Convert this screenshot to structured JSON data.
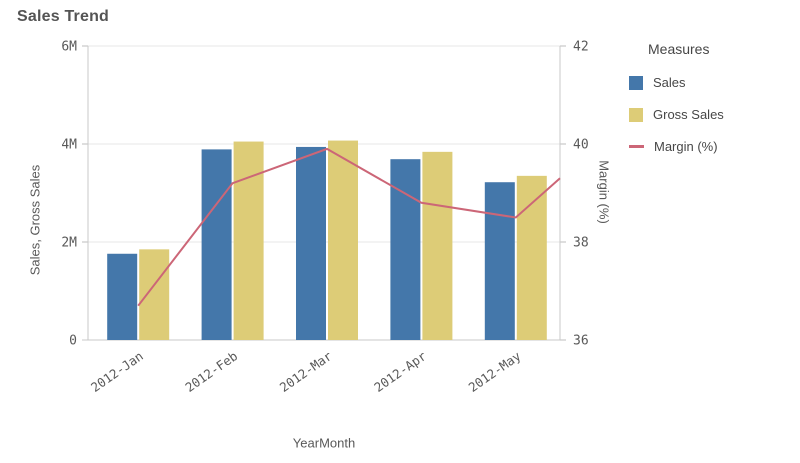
{
  "header": {
    "title": "Sales Trend"
  },
  "legend": {
    "title": "Measures"
  },
  "chart_data": {
    "type": "combo",
    "title": "Sales Trend",
    "grid": true,
    "legend_position": "right",
    "x_axis": {
      "title": "YearMonth",
      "categories": [
        "2012-Jan",
        "2012-Feb",
        "2012-Mar",
        "2012-Apr",
        "2012-May"
      ]
    },
    "left_axis": {
      "title": "Sales, Gross Sales",
      "min": 0,
      "max": 6000000,
      "ticks": [
        {
          "label": "6M",
          "value": 6000000
        },
        {
          "label": "4M",
          "value": 4000000
        },
        {
          "label": "2M",
          "value": 2000000
        },
        {
          "label": "0",
          "value": 0
        }
      ]
    },
    "right_axis": {
      "title": "Margin (%)",
      "min": 36,
      "max": 42,
      "ticks": [
        {
          "label": "42",
          "value": 42
        },
        {
          "label": "40",
          "value": 40
        },
        {
          "label": "38",
          "value": 38
        },
        {
          "label": "36",
          "value": 36
        }
      ]
    },
    "series": [
      {
        "name": "Sales",
        "type": "bar",
        "axis": "left",
        "color": "#4477aa",
        "values": [
          1760000,
          3890000,
          3940000,
          3690000,
          3220000
        ]
      },
      {
        "name": "Gross Sales",
        "type": "bar",
        "axis": "left",
        "color": "#ddcc77",
        "values": [
          1850000,
          4050000,
          4070000,
          3840000,
          3350000
        ]
      },
      {
        "name": "Margin (%)",
        "type": "line",
        "axis": "right",
        "color": "#cc6677",
        "values": [
          36.7,
          39.2,
          39.9,
          38.8,
          38.5
        ],
        "right_edge_value": 39.3
      }
    ]
  }
}
